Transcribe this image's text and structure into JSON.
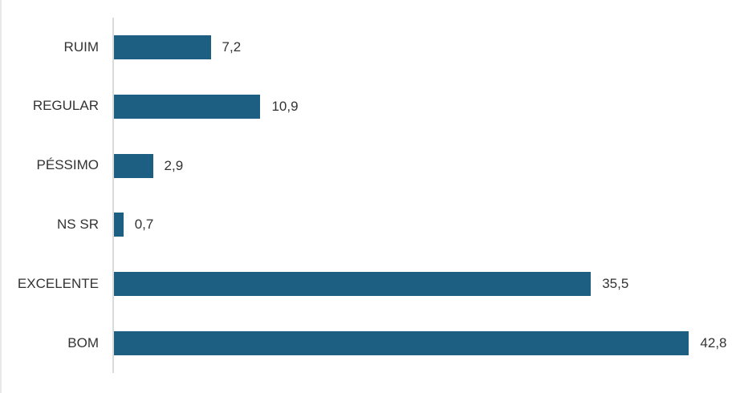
{
  "chart_data": {
    "type": "bar",
    "orientation": "horizontal",
    "title": "",
    "xlabel": "",
    "ylabel": "",
    "categories": [
      "RUIM",
      "REGULAR",
      "PÉSSIMO",
      "NS SR",
      "EXCELENTE",
      "BOM"
    ],
    "values": [
      7.2,
      10.9,
      2.9,
      0.7,
      35.5,
      42.8
    ],
    "value_labels": [
      "7,2",
      "10,9",
      "2,9",
      "0,7",
      "35,5",
      "42,8"
    ],
    "xlim": [
      0,
      46.3
    ],
    "grid": false,
    "legend": false,
    "bar_color": "#1C5F82",
    "axis_line_color": "#DADADA",
    "text_color": "#333333",
    "background_color": "#FFFFFF"
  }
}
